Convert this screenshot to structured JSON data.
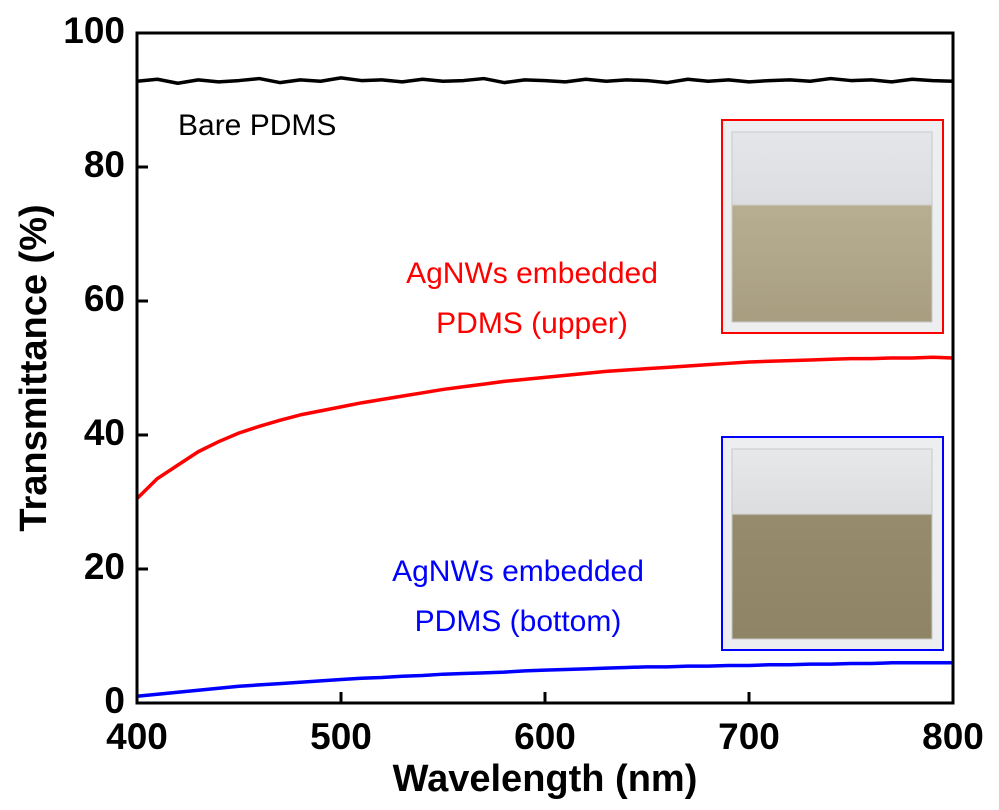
{
  "chart_data": {
    "type": "line",
    "xlabel": "Wavelength (nm)",
    "ylabel": "Transmittance (%)",
    "xlim": [
      400,
      800
    ],
    "xticks": [
      400,
      500,
      600,
      700,
      800
    ],
    "ylim": [
      0,
      100
    ],
    "yticks": [
      0,
      20,
      40,
      60,
      80,
      100
    ],
    "x": [
      400,
      410,
      420,
      430,
      440,
      450,
      460,
      470,
      480,
      490,
      500,
      510,
      520,
      530,
      540,
      550,
      560,
      570,
      580,
      590,
      600,
      610,
      620,
      630,
      640,
      650,
      660,
      670,
      680,
      690,
      700,
      710,
      720,
      730,
      740,
      750,
      760,
      770,
      780,
      790,
      800
    ],
    "series": [
      {
        "label": [
          "Bare PDMS"
        ],
        "color": "#000000",
        "values": [
          92.8,
          93.1,
          92.5,
          93.0,
          92.7,
          92.9,
          93.2,
          92.6,
          93.0,
          92.8,
          93.3,
          92.9,
          93.0,
          92.7,
          93.1,
          92.8,
          92.9,
          93.2,
          92.6,
          93.0,
          92.9,
          92.7,
          93.1,
          92.8,
          93.0,
          92.9,
          92.6,
          93.1,
          92.8,
          93.0,
          92.7,
          92.9,
          93.0,
          92.8,
          93.2,
          92.9,
          93.0,
          92.7,
          93.1,
          92.9,
          92.8
        ]
      },
      {
        "label": [
          "AgNWs embedded",
          "PDMS (upper)"
        ],
        "color": "#ff0000",
        "values": [
          30.5,
          33.5,
          35.5,
          37.5,
          39,
          40.3,
          41.3,
          42.2,
          43,
          43.6,
          44.2,
          44.8,
          45.3,
          45.8,
          46.3,
          46.8,
          47.2,
          47.6,
          48,
          48.3,
          48.6,
          48.9,
          49.2,
          49.5,
          49.7,
          49.9,
          50.1,
          50.3,
          50.5,
          50.7,
          50.9,
          51,
          51.1,
          51.2,
          51.3,
          51.4,
          51.4,
          51.5,
          51.5,
          51.6,
          51.5
        ]
      },
      {
        "label": [
          "AgNWs embedded",
          "PDMS (bottom)"
        ],
        "color": "#0000ff",
        "values": [
          1,
          1.3,
          1.6,
          1.9,
          2.2,
          2.5,
          2.7,
          2.9,
          3.1,
          3.3,
          3.5,
          3.7,
          3.8,
          4,
          4.1,
          4.3,
          4.4,
          4.5,
          4.6,
          4.8,
          4.9,
          5,
          5.1,
          5.2,
          5.3,
          5.4,
          5.4,
          5.5,
          5.5,
          5.6,
          5.6,
          5.7,
          5.7,
          5.8,
          5.8,
          5.9,
          5.9,
          6,
          6,
          6,
          6
        ]
      }
    ]
  }
}
